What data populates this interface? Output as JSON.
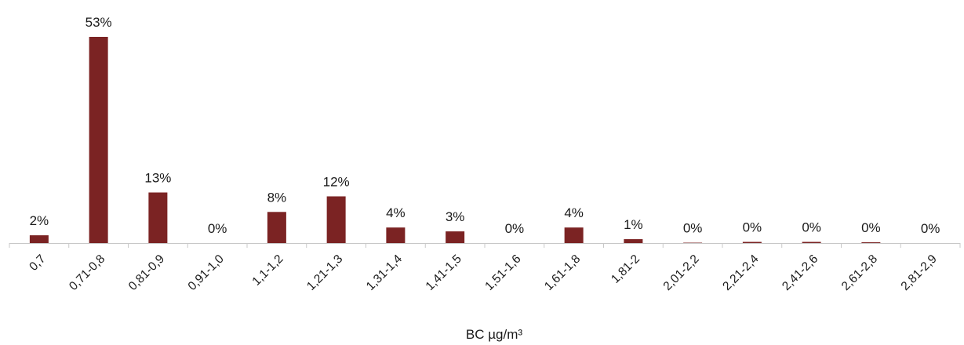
{
  "chart_data": {
    "type": "bar",
    "xlabel": "BC µg/m³",
    "ylabel": "",
    "categories": [
      "0,7",
      "0,71-0,8",
      "0,81-0,9",
      "0,91-1,0",
      "1,1-1,2",
      "1,21-1,3",
      "1,31-1,4",
      "1,41-1,5",
      "1,51-1,6",
      "1,61-1,8",
      "1,81-2",
      "2,01-2,2",
      "2,21-2,4",
      "2,41-2,6",
      "2,61-2,8",
      "2,81-2,9"
    ],
    "values": [
      2.0,
      53.0,
      13.0,
      0.0,
      8.0,
      12.0,
      4.0,
      3.0,
      0.0,
      4.0,
      1.0,
      0.1,
      0.3,
      0.3,
      0.2,
      0.0
    ],
    "value_labels": [
      "2%",
      "53%",
      "13%",
      "0%",
      "8%",
      "12%",
      "4%",
      "3%",
      "0%",
      "4%",
      "1%",
      "0%",
      "0%",
      "0%",
      "0%",
      "0%"
    ],
    "ylim": [
      0,
      55
    ],
    "grid": false,
    "legend": "none",
    "bar_color": "#7b2323",
    "axis_color": "#c8c8c8"
  }
}
